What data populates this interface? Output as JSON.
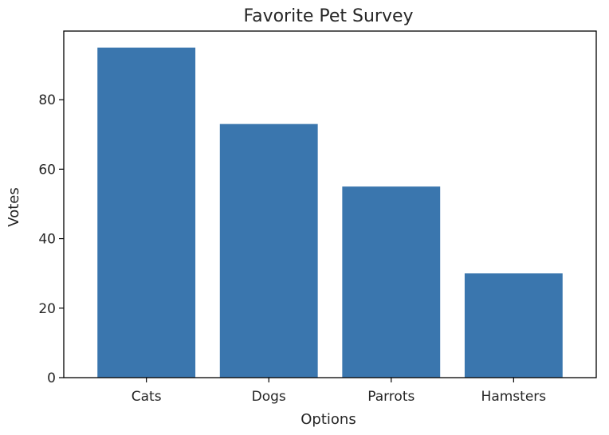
{
  "chart_data": {
    "type": "bar",
    "title": "Favorite Pet Survey",
    "xlabel": "Options",
    "ylabel": "Votes",
    "categories": [
      "Cats",
      "Dogs",
      "Parrots",
      "Hamsters"
    ],
    "values": [
      95,
      73,
      55,
      30
    ],
    "ylim": [
      0,
      99.75
    ],
    "yticks": [
      0,
      20,
      40,
      60,
      80
    ],
    "bar_color": "#3a76ae",
    "grid": false,
    "legend": "none"
  }
}
